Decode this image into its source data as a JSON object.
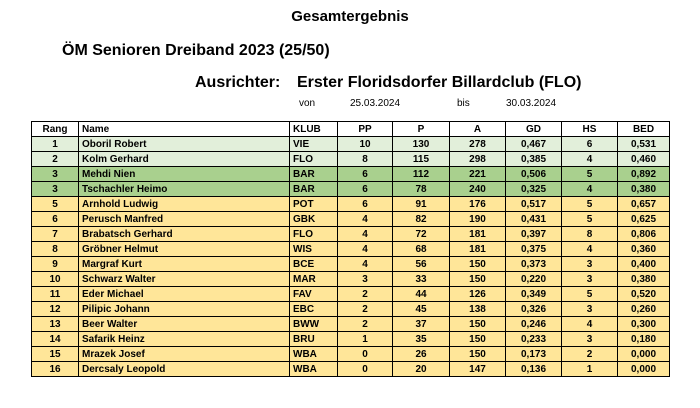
{
  "header": {
    "title": "Gesamtergebnis",
    "subtitle": "ÖM Senioren Dreiband 2023 (25/50)",
    "organizer_label": "Ausrichter:",
    "organizer_name": "Erster Floridsdorfer Billardclub (FLO)",
    "von_label": "von",
    "start_date": "25.03.2024",
    "bis_label": "bis",
    "end_date": "30.03.2024"
  },
  "table": {
    "columns": [
      "Rang",
      "Name",
      "KLUB",
      "PP",
      "P",
      "A",
      "GD",
      "HS",
      "BED"
    ],
    "colors": {
      "lightgreen": "#e2efda",
      "green": "#a9d08e",
      "yellow": "#ffe699"
    },
    "rows": [
      {
        "rang": "1",
        "name": "Oboril Robert",
        "klub": "VIE",
        "pp": "10",
        "p": "130",
        "a": "278",
        "gd": "0,467",
        "hs": "6",
        "bed": "0,531",
        "color": "lightgreen"
      },
      {
        "rang": "2",
        "name": "Kolm Gerhard",
        "klub": "FLO",
        "pp": "8",
        "p": "115",
        "a": "298",
        "gd": "0,385",
        "hs": "4",
        "bed": "0,460",
        "color": "lightgreen"
      },
      {
        "rang": "3",
        "name": "Mehdi Nien",
        "klub": "BAR",
        "pp": "6",
        "p": "112",
        "a": "221",
        "gd": "0,506",
        "hs": "5",
        "bed": "0,892",
        "color": "green"
      },
      {
        "rang": "3",
        "name": "Tschachler Heimo",
        "klub": "BAR",
        "pp": "6",
        "p": "78",
        "a": "240",
        "gd": "0,325",
        "hs": "4",
        "bed": "0,380",
        "color": "green"
      },
      {
        "rang": "5",
        "name": "Arnhold Ludwig",
        "klub": "POT",
        "pp": "6",
        "p": "91",
        "a": "176",
        "gd": "0,517",
        "hs": "5",
        "bed": "0,657",
        "color": "yellow"
      },
      {
        "rang": "6",
        "name": "Perusch Manfred",
        "klub": "GBK",
        "pp": "4",
        "p": "82",
        "a": "190",
        "gd": "0,431",
        "hs": "5",
        "bed": "0,625",
        "color": "yellow"
      },
      {
        "rang": "7",
        "name": "Brabatsch Gerhard",
        "klub": "FLO",
        "pp": "4",
        "p": "72",
        "a": "181",
        "gd": "0,397",
        "hs": "8",
        "bed": "0,806",
        "color": "yellow"
      },
      {
        "rang": "8",
        "name": "Gröbner Helmut",
        "klub": "WIS",
        "pp": "4",
        "p": "68",
        "a": "181",
        "gd": "0,375",
        "hs": "4",
        "bed": "0,360",
        "color": "yellow"
      },
      {
        "rang": "9",
        "name": "Margraf Kurt",
        "klub": "BCE",
        "pp": "4",
        "p": "56",
        "a": "150",
        "gd": "0,373",
        "hs": "3",
        "bed": "0,400",
        "color": "yellow"
      },
      {
        "rang": "10",
        "name": "Schwarz Walter",
        "klub": "MAR",
        "pp": "3",
        "p": "33",
        "a": "150",
        "gd": "0,220",
        "hs": "3",
        "bed": "0,380",
        "color": "yellow"
      },
      {
        "rang": "11",
        "name": "Eder Michael",
        "klub": "FAV",
        "pp": "2",
        "p": "44",
        "a": "126",
        "gd": "0,349",
        "hs": "5",
        "bed": "0,520",
        "color": "yellow"
      },
      {
        "rang": "12",
        "name": "Pilipic Johann",
        "klub": "EBC",
        "pp": "2",
        "p": "45",
        "a": "138",
        "gd": "0,326",
        "hs": "3",
        "bed": "0,260",
        "color": "yellow"
      },
      {
        "rang": "13",
        "name": "Beer Walter",
        "klub": "BWW",
        "pp": "2",
        "p": "37",
        "a": "150",
        "gd": "0,246",
        "hs": "4",
        "bed": "0,300",
        "color": "yellow"
      },
      {
        "rang": "14",
        "name": "Safarik Heinz",
        "klub": "BRU",
        "pp": "1",
        "p": "35",
        "a": "150",
        "gd": "0,233",
        "hs": "3",
        "bed": "0,180",
        "color": "yellow"
      },
      {
        "rang": "15",
        "name": "Mrazek Josef",
        "klub": "WBA",
        "pp": "0",
        "p": "26",
        "a": "150",
        "gd": "0,173",
        "hs": "2",
        "bed": "0,000",
        "color": "yellow"
      },
      {
        "rang": "16",
        "name": "Dercsaly Leopold",
        "klub": "WBA",
        "pp": "0",
        "p": "20",
        "a": "147",
        "gd": "0,136",
        "hs": "1",
        "bed": "0,000",
        "color": "yellow"
      }
    ]
  }
}
